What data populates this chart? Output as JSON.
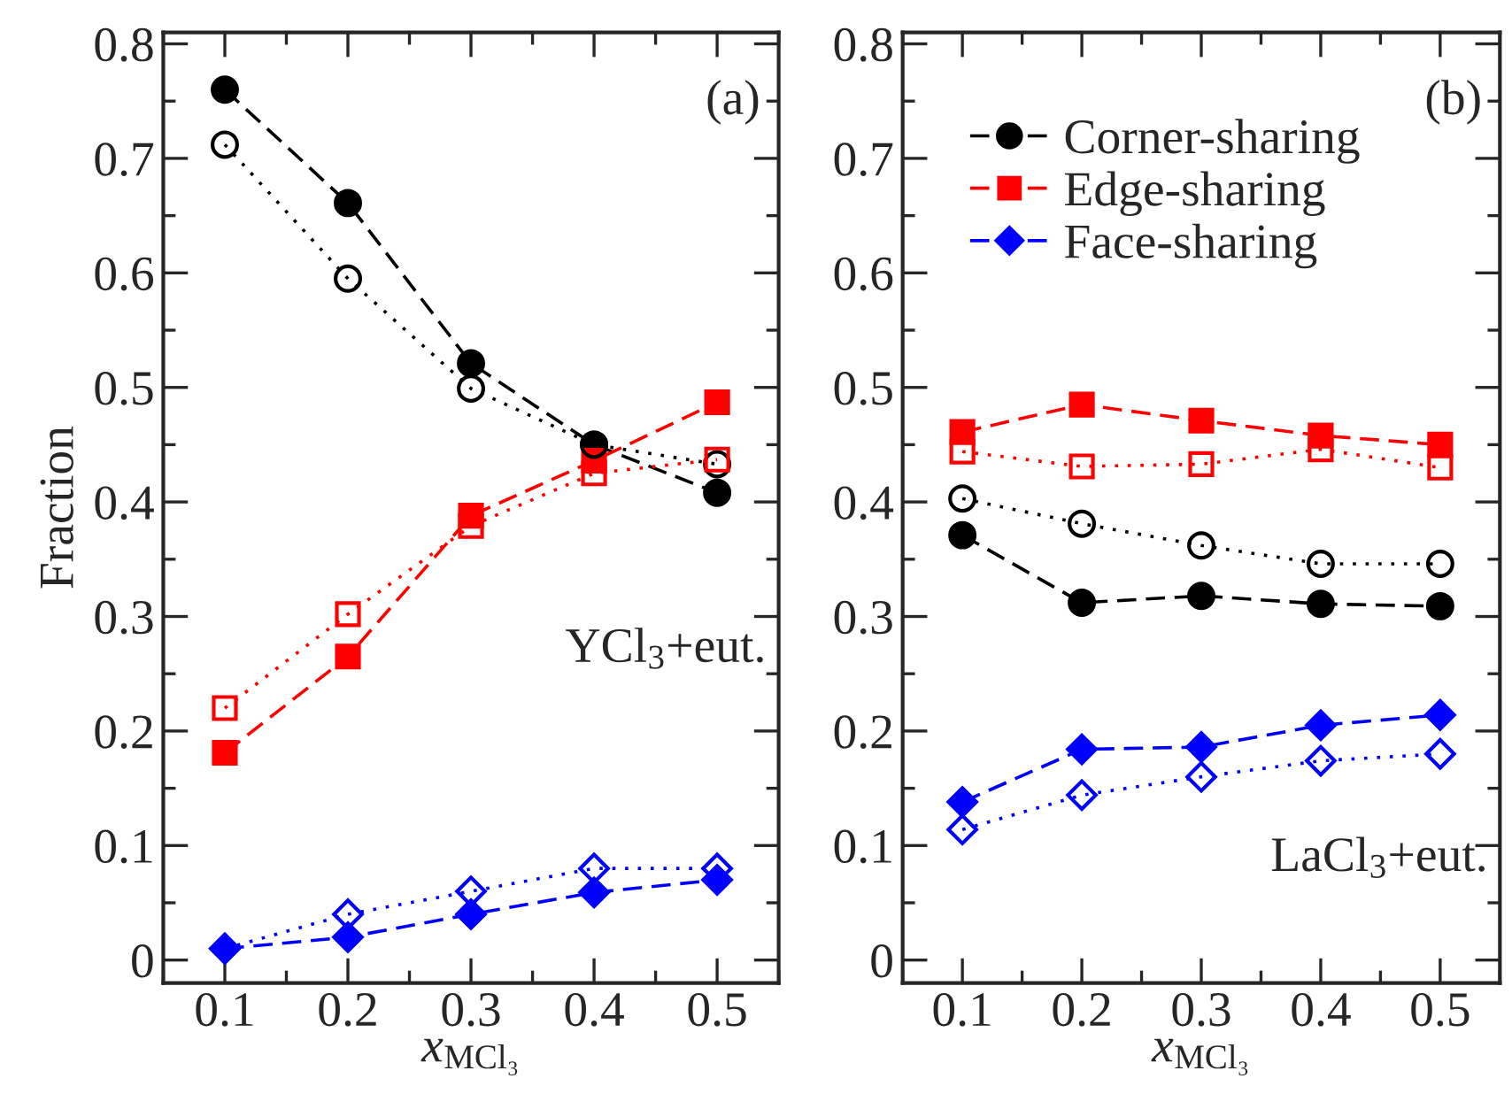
{
  "chart_data": [
    {
      "type": "line",
      "ylabel": "Fraction",
      "xlabel": "x$_{MCl₃}$",
      "x": [
        0.1,
        0.2,
        0.3,
        0.4,
        0.5
      ],
      "xlim": [
        0.05,
        0.55
      ],
      "xticks": [
        {
          "value": 0.1,
          "label": "0.1"
        },
        {
          "value": 0.2,
          "label": "0.2"
        },
        {
          "value": 0.3,
          "label": "0.3"
        },
        {
          "value": 0.4,
          "label": "0.4"
        },
        {
          "value": 0.5,
          "label": "0.5"
        }
      ],
      "ylim": [
        -0.02,
        0.81
      ],
      "yticks": [
        0,
        0.1,
        0.2,
        0.3,
        0.4,
        0.5,
        0.6,
        0.7,
        0.8
      ],
      "annotations": [
        "(a)",
        "YCl$_{3}$+eut."
      ],
      "legend": false,
      "grid": false,
      "series": [
        {
          "color": "#000000",
          "marker": "circle",
          "line_style": "dashed",
          "values": [
            0.76,
            0.661,
            0.521,
            0.45,
            0.408
          ]
        },
        {
          "color": "#000000",
          "marker": "circle",
          "line_style": "dotted",
          "values": [
            0.712,
            0.595,
            0.499,
            0.45,
            0.433
          ]
        },
        {
          "color": "#ff0000",
          "marker": "square",
          "line_style": "dashed",
          "values": [
            0.181,
            0.265,
            0.388,
            0.436,
            0.487
          ]
        },
        {
          "color": "#ff0000",
          "marker": "square",
          "line_style": "dotted",
          "values": [
            0.22,
            0.302,
            0.379,
            0.425,
            0.437
          ]
        },
        {
          "color": "#0000ff",
          "marker": "diamond",
          "line_style": "dashed",
          "values": [
            0.01,
            0.02,
            0.04,
            0.059,
            0.07
          ]
        },
        {
          "color": "#0000ff",
          "marker": "diamond",
          "line_style": "dotted",
          "values": [
            0.01,
            0.04,
            0.06,
            0.08,
            0.08
          ]
        }
      ]
    },
    {
      "type": "line",
      "xlabel": "x$_{MCl₃}$",
      "x": [
        0.1,
        0.2,
        0.3,
        0.4,
        0.5
      ],
      "xlim": [
        0.05,
        0.55
      ],
      "xticks": [
        {
          "value": 0.1,
          "label": "0.1"
        },
        {
          "value": 0.2,
          "label": "0.2"
        },
        {
          "value": 0.3,
          "label": "0.3"
        },
        {
          "value": 0.4,
          "label": "0.4"
        },
        {
          "value": 0.5,
          "label": "0.5"
        }
      ],
      "ylim": [
        -0.02,
        0.81
      ],
      "yticks": [
        0,
        0.1,
        0.2,
        0.3,
        0.4,
        0.5,
        0.6,
        0.7,
        0.8
      ],
      "annotations": [
        "(b)",
        "LaCl$_{3}$+eut."
      ],
      "legend": "top left",
      "grid": false,
      "series": [
        {
          "name": "Corner-sharing",
          "color": "#000000",
          "marker": "circle",
          "line_style": "dashed",
          "values": [
            0.371,
            0.312,
            0.318,
            0.311,
            0.309
          ]
        },
        {
          "color": "#000000",
          "marker": "circle",
          "line_style": "dotted",
          "values": [
            0.403,
            0.381,
            0.362,
            0.346,
            0.346
          ]
        },
        {
          "name": "Edge-sharing",
          "color": "#ff0000",
          "marker": "square",
          "line_style": "dashed",
          "values": [
            0.461,
            0.485,
            0.471,
            0.458,
            0.45
          ]
        },
        {
          "color": "#ff0000",
          "marker": "square",
          "line_style": "dotted",
          "values": [
            0.444,
            0.431,
            0.433,
            0.446,
            0.43
          ]
        },
        {
          "name": "Face-sharing",
          "color": "#0000ff",
          "marker": "diamond",
          "line_style": "dashed",
          "values": [
            0.138,
            0.184,
            0.186,
            0.205,
            0.214
          ]
        },
        {
          "color": "#0000ff",
          "marker": "diamond",
          "line_style": "dotted",
          "values": [
            0.114,
            0.144,
            0.16,
            0.174,
            0.18
          ]
        }
      ]
    }
  ]
}
